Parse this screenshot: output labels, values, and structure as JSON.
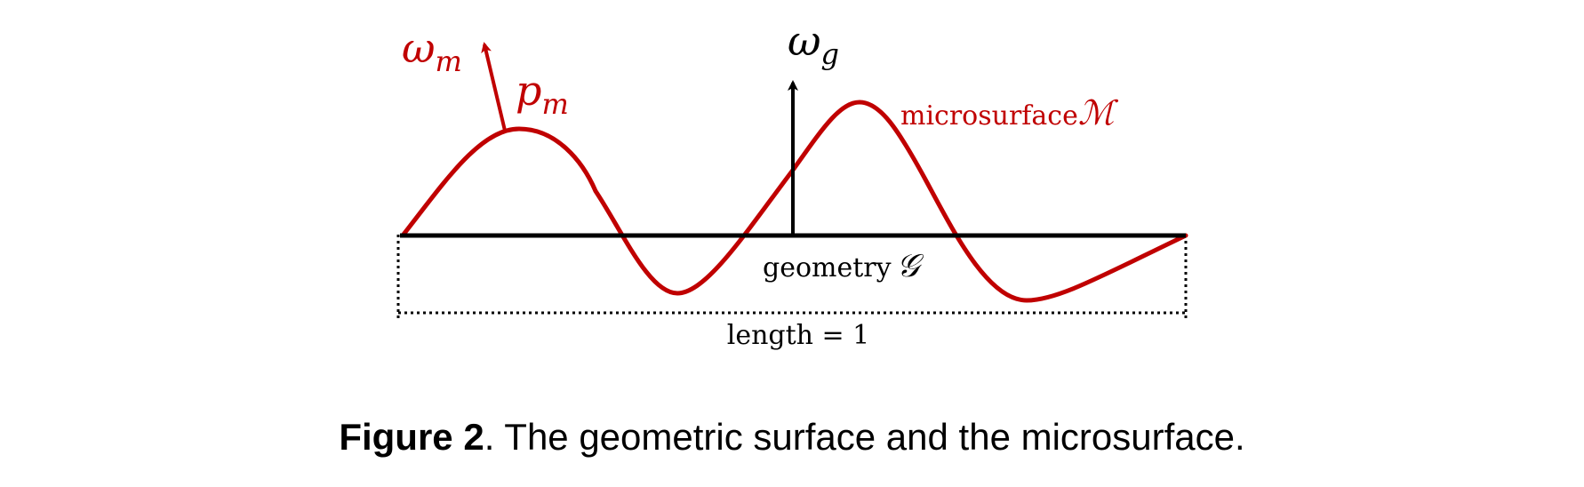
{
  "colors": {
    "microsurface": "#c00000",
    "geometry": "#000000"
  },
  "labels": {
    "omega_m": {
      "base": "ω",
      "sub": "m"
    },
    "p_m": {
      "base": "p",
      "sub": "m"
    },
    "omega_g": {
      "base": "ω",
      "sub": "g"
    },
    "microsurface_word": "microsurface",
    "microsurface_symbol": "ℳ",
    "geometry_word": "geometry",
    "geometry_symbol": "𝒢",
    "length": "length = 1"
  },
  "caption": {
    "label": "Figure 2",
    "separator": ".",
    "text": " The geometric surface and the microsurface."
  }
}
